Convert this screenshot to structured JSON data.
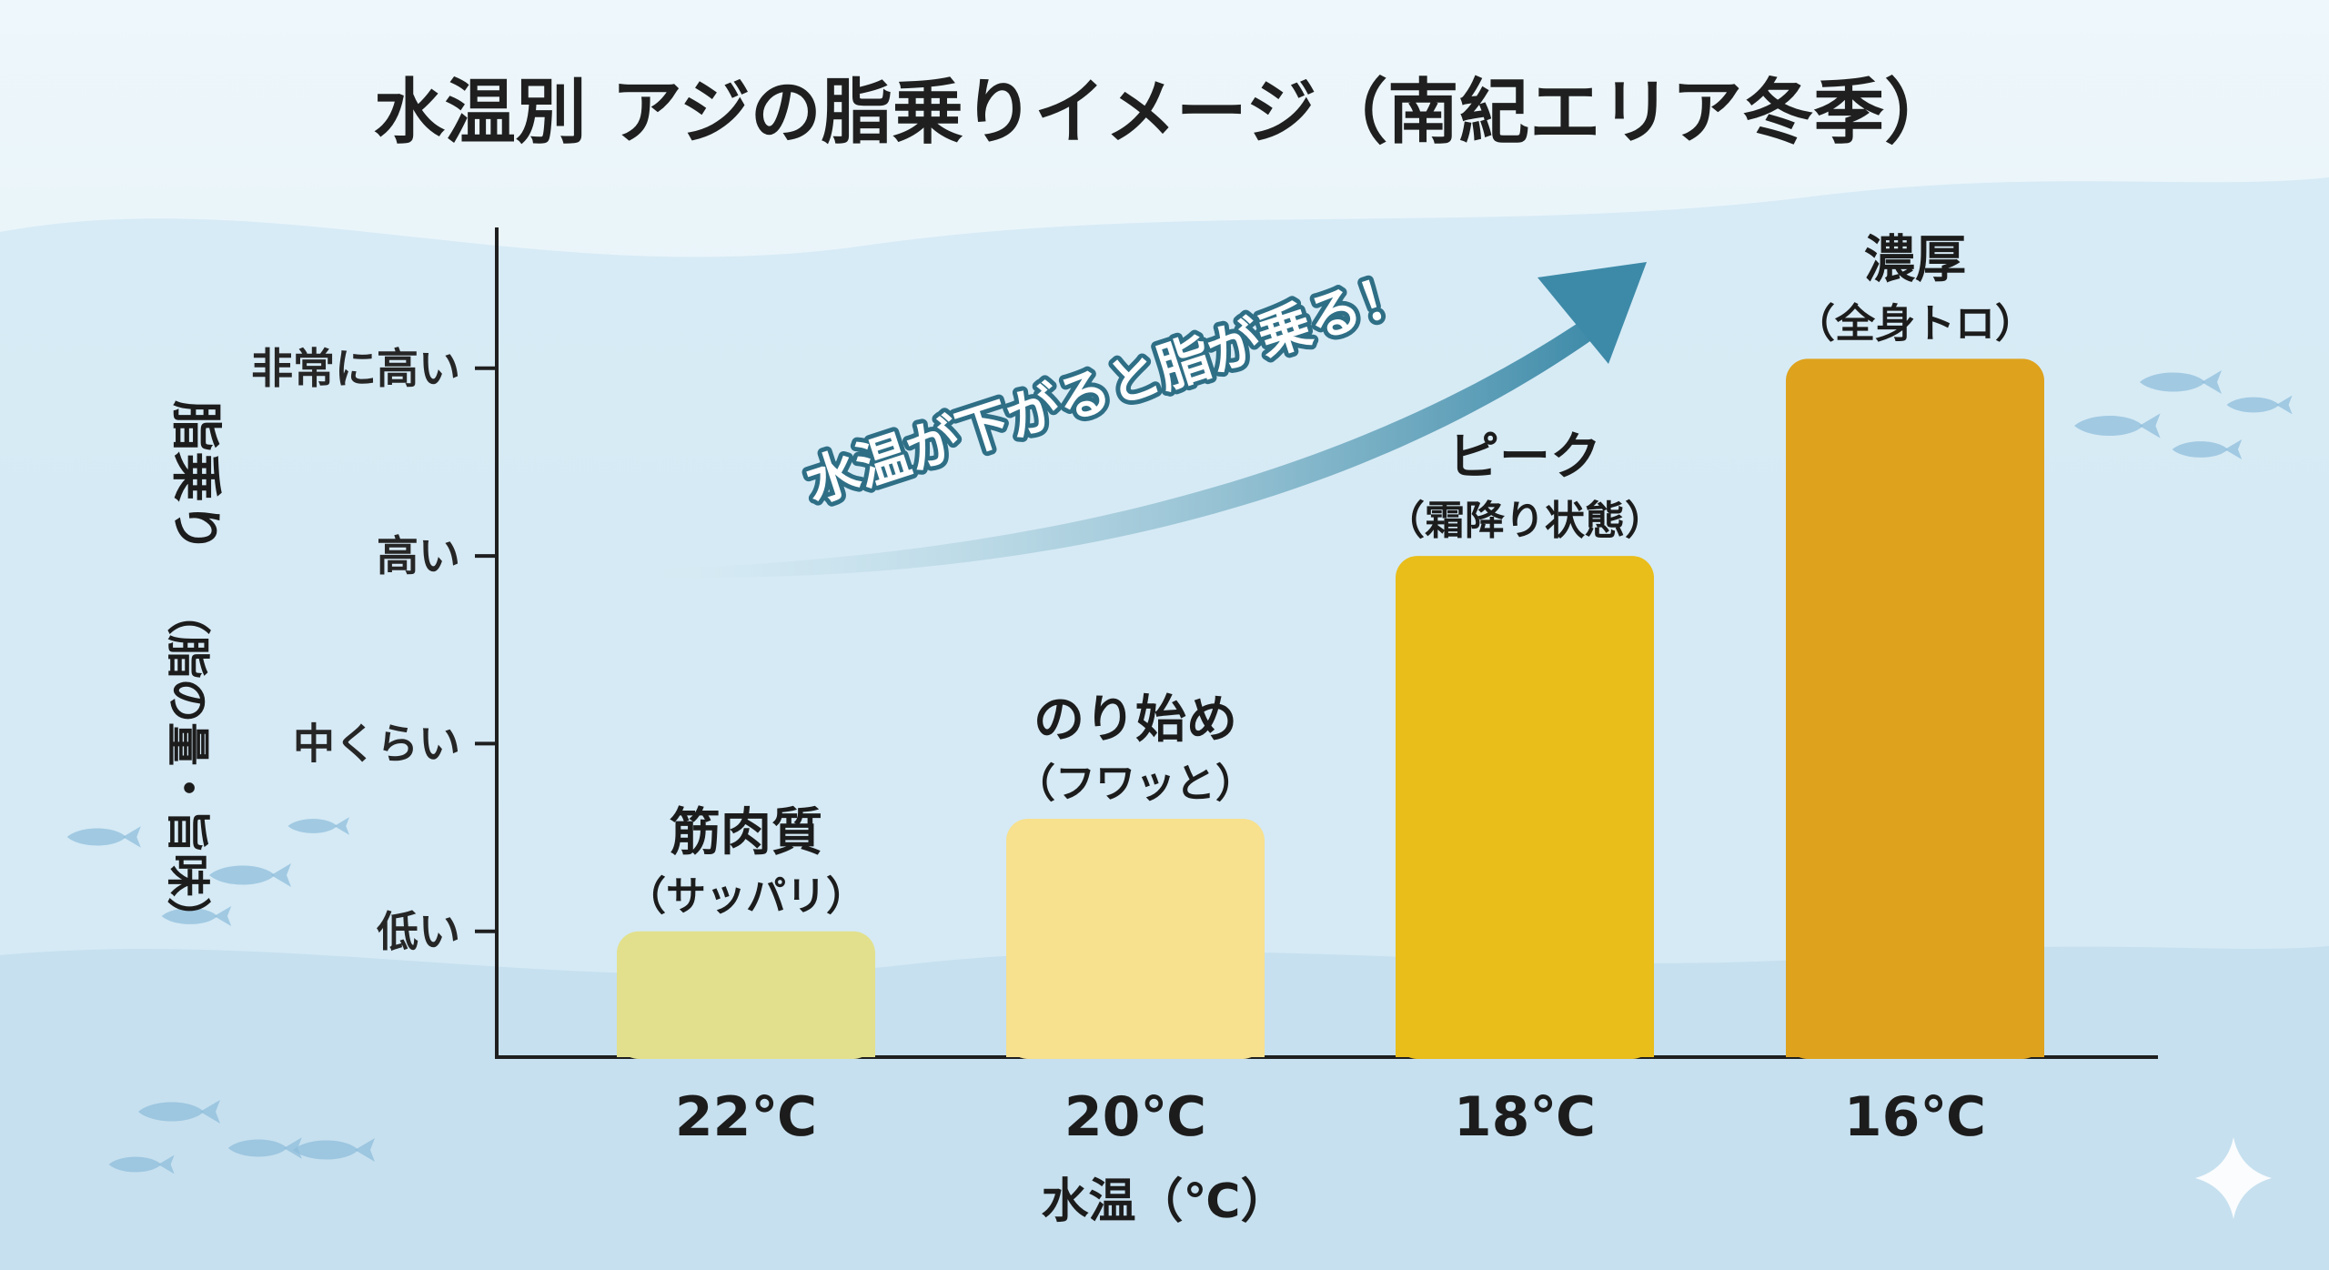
{
  "chart_data": {
    "type": "bar",
    "title": "水温別 アジの脂乗りイメージ（南紀エリア冬季）",
    "xlabel": "水温（℃）",
    "ylabel_main": "脂乗り",
    "ylabel_sub": "（脂の量・旨味）",
    "categories": [
      "22℃",
      "20℃",
      "18℃",
      "16℃"
    ],
    "values": [
      1,
      1.6,
      3,
      4.05
    ],
    "bar_labels": [
      {
        "main": "筋肉質",
        "sub": "（サッパリ）"
      },
      {
        "main": "のり始め",
        "sub": "（フワッと）"
      },
      {
        "main": "ピーク",
        "sub": "（霜降り状態）"
      },
      {
        "main": "濃厚",
        "sub": "（全身トロ）"
      }
    ],
    "bar_colors": [
      "#e2e08c",
      "#f7e08e",
      "#e9bd1a",
      "#dea21d"
    ],
    "y_ticks": [
      {
        "value": 1,
        "label": "低い"
      },
      {
        "value": 2,
        "label": "中くらい"
      },
      {
        "value": 3,
        "label": "高い"
      },
      {
        "value": 4,
        "label": "非常に高い"
      }
    ],
    "ylim": [
      0.33,
      4.75
    ],
    "annotation": "水温が下がると脂が乗る！",
    "grid": false,
    "legend": "none"
  },
  "colors": {
    "background": "#eaf5fb",
    "wave": "#c8e2f0",
    "wave_dark": "#b3d6ea",
    "axis": "#1f1f1f",
    "arrow_start": "#d8ecf2",
    "arrow_end": "#3d8aa8",
    "fish": "#8fbddb"
  },
  "icons": [
    "fish-icon",
    "sparkle-icon",
    "trend-arrow-icon"
  ]
}
